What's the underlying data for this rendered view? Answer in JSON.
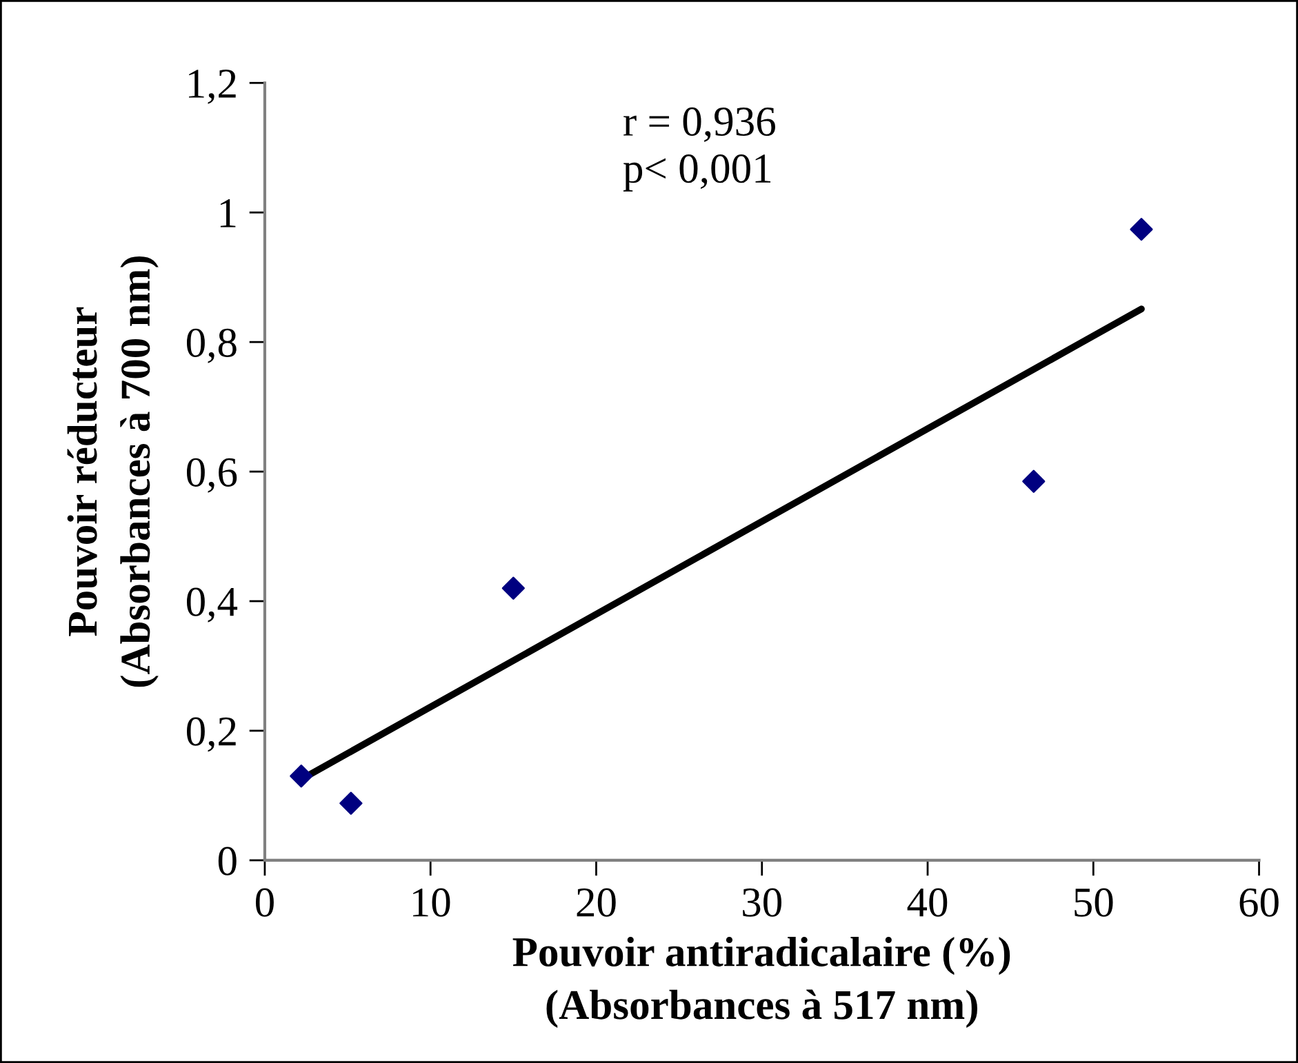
{
  "chart_data": {
    "type": "scatter",
    "xlabel": "Pouvoir antiradicalaire (%)\n(Absorbances à 517 nm)",
    "ylabel": "Pouvoir réducteur\n(Absorbances à 700 nm)",
    "annotations": [
      "r = 0,936\np< 0,001"
    ],
    "series": [
      {
        "color": "#000080",
        "marker": "diamond",
        "x": [
          2.2,
          5.2,
          15.0,
          46.4,
          52.9
        ],
        "values": [
          0.13,
          0.088,
          0.42,
          0.585,
          0.974
        ]
      },
      {
        "type": "line",
        "color": "#000000",
        "marker": "none",
        "x": [
          2.2,
          52.9
        ],
        "values": [
          0.125,
          0.851
        ]
      }
    ],
    "xlim": [
      0,
      60
    ],
    "xticks": [
      0,
      10,
      20,
      30,
      40,
      50,
      60
    ],
    "ylim": [
      0,
      1.2
    ],
    "yticks": [
      0,
      {
        "value": 0.2,
        "label": "0,2"
      },
      {
        "value": 0.4,
        "label": "0,4"
      },
      {
        "value": 0.6,
        "label": "0,6"
      },
      {
        "value": 0.8,
        "label": "0,8"
      },
      1,
      {
        "value": 1.2,
        "label": "1,2"
      }
    ],
    "grid": false,
    "legend": false
  }
}
